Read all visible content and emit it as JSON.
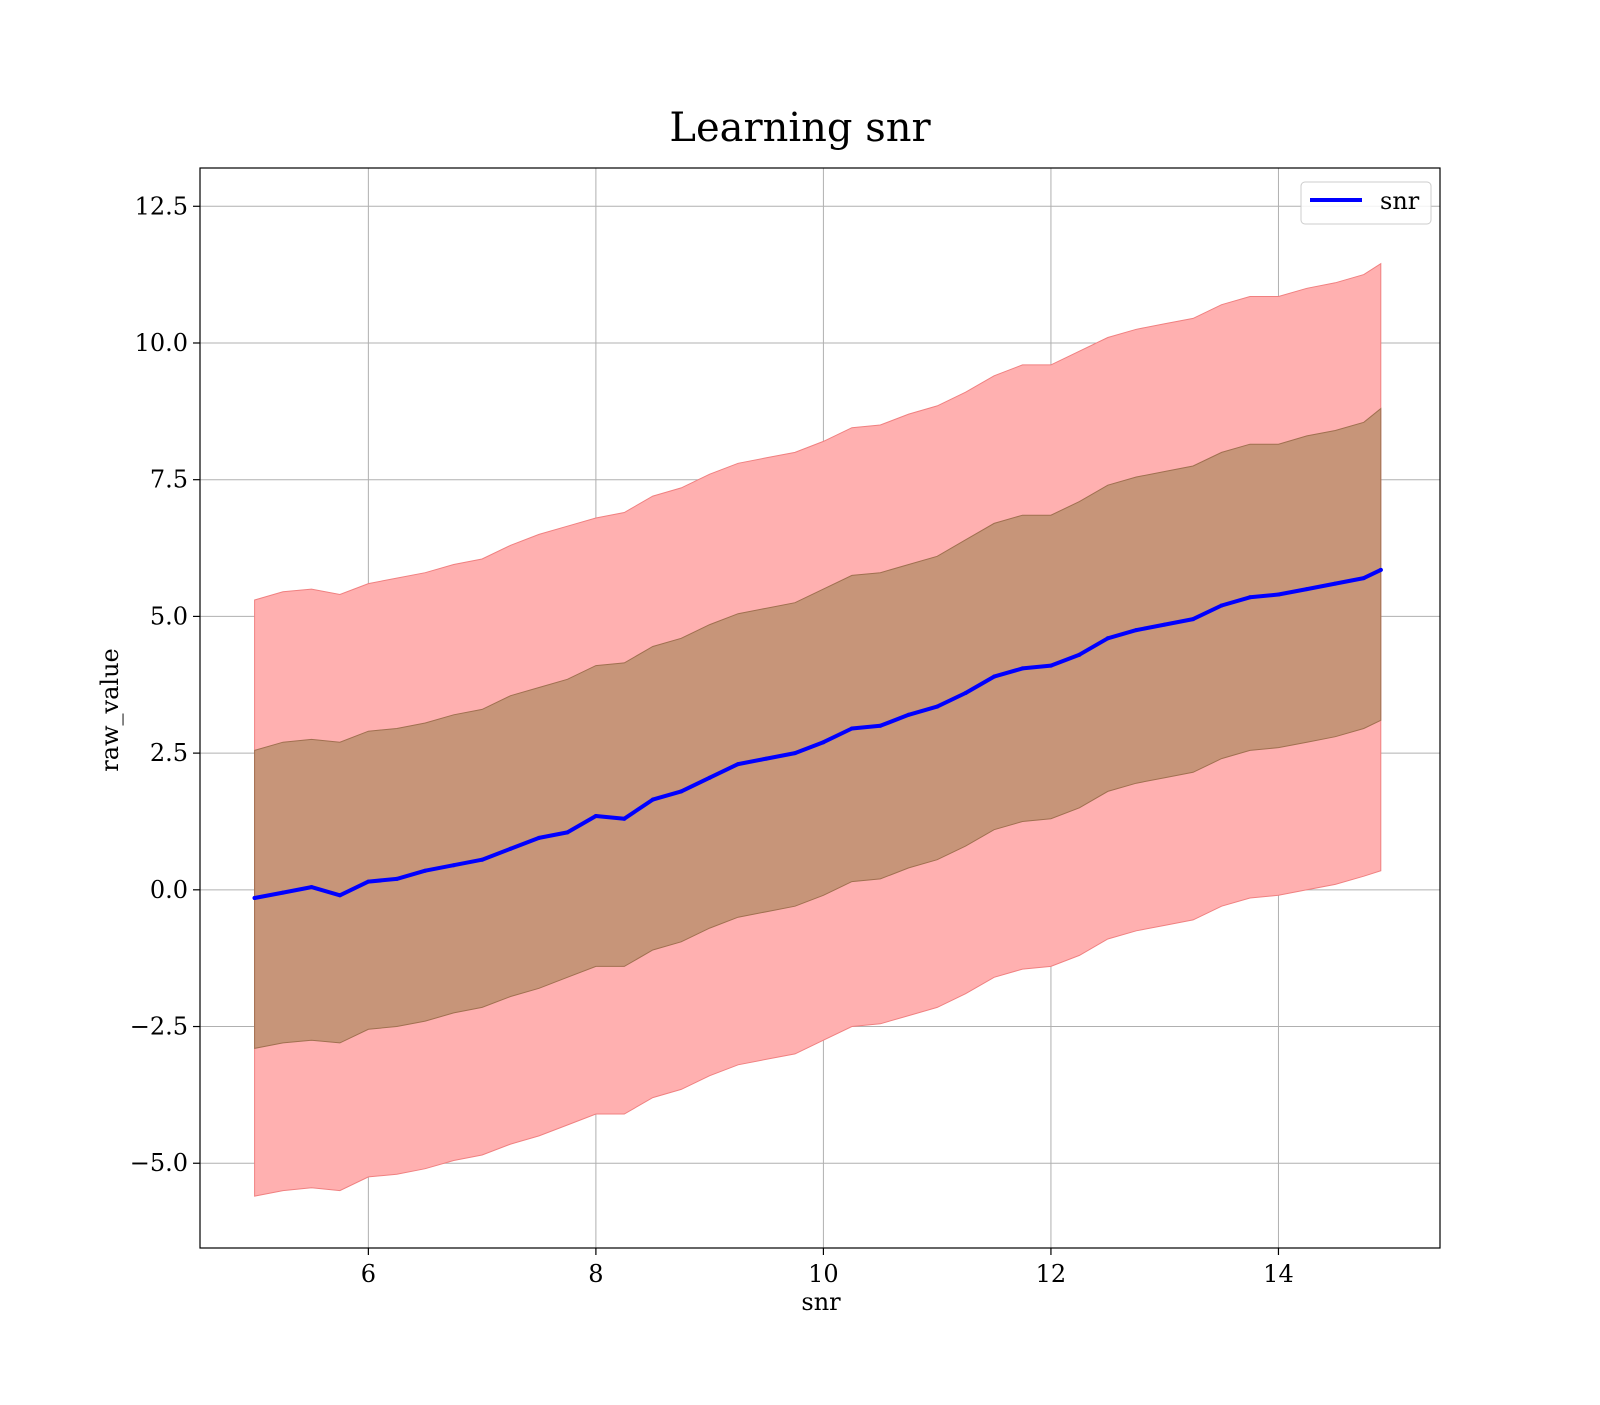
{
  "chart_data": {
    "type": "area",
    "title": "Learning snr",
    "xlabel": "snr",
    "ylabel": "raw_value",
    "xlim": [
      4.52,
      15.42
    ],
    "ylim": [
      -6.55,
      13.2
    ],
    "grid": true,
    "legend_position": "top-right",
    "x_ticks": [
      6,
      8,
      10,
      12,
      14
    ],
    "x_tick_labels": [
      "6",
      "8",
      "10",
      "12",
      "14"
    ],
    "y_ticks": [
      -5.0,
      -2.5,
      0.0,
      2.5,
      5.0,
      7.5,
      10.0,
      12.5
    ],
    "y_tick_labels": [
      "−5.0",
      "−2.5",
      "0.0",
      "2.5",
      "5.0",
      "7.5",
      "10.0",
      "12.5"
    ],
    "band_colors": {
      "outer": "#ffb0b0",
      "inner": "#c79579",
      "outer_edge": "#f08080",
      "inner_edge": "#a07050",
      "line": "#0000ff"
    },
    "series": [
      {
        "name": "snr",
        "x": [
          5.0,
          5.25,
          5.5,
          5.75,
          6.0,
          6.25,
          6.5,
          6.75,
          7.0,
          7.25,
          7.5,
          7.75,
          8.0,
          8.25,
          8.5,
          8.75,
          9.0,
          9.25,
          9.5,
          9.75,
          10.0,
          10.25,
          10.5,
          10.75,
          11.0,
          11.25,
          11.5,
          11.75,
          12.0,
          12.25,
          12.5,
          12.75,
          13.0,
          13.25,
          13.5,
          13.75,
          14.0,
          14.25,
          14.5,
          14.75,
          14.9
        ],
        "mean": [
          -0.15,
          -0.05,
          0.05,
          -0.1,
          0.15,
          0.2,
          0.35,
          0.45,
          0.55,
          0.75,
          0.95,
          1.05,
          1.35,
          1.3,
          1.65,
          1.8,
          2.05,
          2.3,
          2.4,
          2.5,
          2.7,
          2.95,
          3.0,
          3.2,
          3.35,
          3.6,
          3.9,
          4.05,
          4.1,
          4.3,
          4.6,
          4.75,
          4.85,
          4.95,
          5.2,
          5.35,
          5.4,
          5.5,
          5.6,
          5.7,
          5.85
        ],
        "inner_upper": [
          2.55,
          2.7,
          2.75,
          2.7,
          2.9,
          2.95,
          3.05,
          3.2,
          3.3,
          3.55,
          3.7,
          3.85,
          4.1,
          4.15,
          4.45,
          4.6,
          4.85,
          5.05,
          5.15,
          5.25,
          5.5,
          5.75,
          5.8,
          5.95,
          6.1,
          6.4,
          6.7,
          6.85,
          6.85,
          7.1,
          7.4,
          7.55,
          7.65,
          7.75,
          8.0,
          8.15,
          8.15,
          8.3,
          8.4,
          8.55,
          8.8
        ],
        "inner_lower": [
          -2.9,
          -2.8,
          -2.75,
          -2.8,
          -2.55,
          -2.5,
          -2.4,
          -2.25,
          -2.15,
          -1.95,
          -1.8,
          -1.6,
          -1.4,
          -1.4,
          -1.1,
          -0.95,
          -0.7,
          -0.5,
          -0.4,
          -0.3,
          -0.1,
          0.15,
          0.2,
          0.4,
          0.55,
          0.8,
          1.1,
          1.25,
          1.3,
          1.5,
          1.8,
          1.95,
          2.05,
          2.15,
          2.4,
          2.55,
          2.6,
          2.7,
          2.8,
          2.95,
          3.1
        ],
        "outer_upper": [
          5.3,
          5.45,
          5.5,
          5.4,
          5.6,
          5.7,
          5.8,
          5.95,
          6.05,
          6.3,
          6.5,
          6.65,
          6.8,
          6.9,
          7.2,
          7.35,
          7.6,
          7.8,
          7.9,
          8.0,
          8.2,
          8.45,
          8.5,
          8.7,
          8.85,
          9.1,
          9.4,
          9.6,
          9.6,
          9.85,
          10.1,
          10.25,
          10.35,
          10.45,
          10.7,
          10.85,
          10.85,
          11.0,
          11.1,
          11.25,
          11.45
        ],
        "outer_lower": [
          -5.6,
          -5.5,
          -5.45,
          -5.5,
          -5.25,
          -5.2,
          -5.1,
          -4.95,
          -4.85,
          -4.65,
          -4.5,
          -4.3,
          -4.1,
          -4.1,
          -3.8,
          -3.65,
          -3.4,
          -3.2,
          -3.1,
          -3.0,
          -2.75,
          -2.5,
          -2.45,
          -2.3,
          -2.15,
          -1.9,
          -1.6,
          -1.45,
          -1.4,
          -1.2,
          -0.9,
          -0.75,
          -0.65,
          -0.55,
          -0.3,
          -0.15,
          -0.1,
          0.0,
          0.1,
          0.25,
          0.35
        ]
      }
    ]
  }
}
